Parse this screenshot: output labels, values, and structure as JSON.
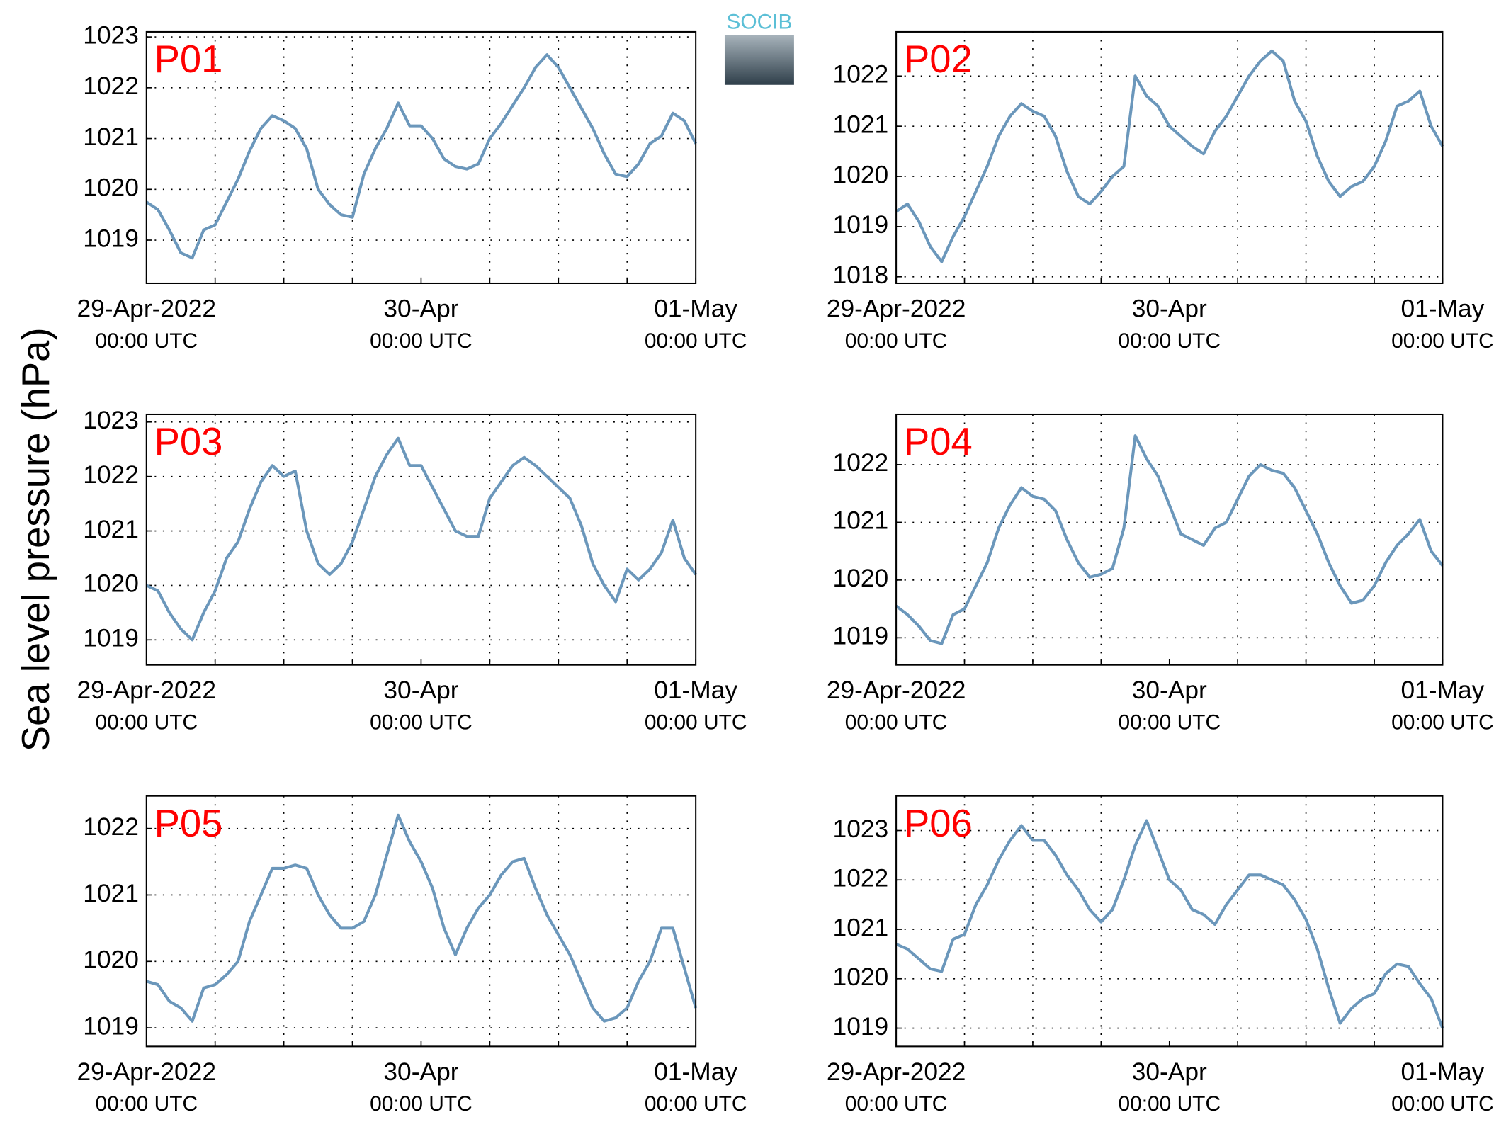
{
  "ylabel": "Sea level pressure (hPa)",
  "logo": "SOCIB",
  "chart_data": [
    {
      "type": "line",
      "title": "P01",
      "color": "#6b97bb",
      "grid": true,
      "x": [
        0,
        1,
        2,
        3,
        4,
        5,
        6,
        7,
        8,
        9,
        10,
        11,
        12,
        13,
        14,
        15,
        16,
        17,
        18,
        19,
        20,
        21,
        22,
        23,
        24,
        25,
        26,
        27,
        28,
        29,
        30,
        31,
        32,
        33,
        34,
        35,
        36,
        37,
        38,
        39,
        40,
        41,
        42,
        43,
        44,
        45,
        46,
        47,
        48
      ],
      "values": [
        1019.75,
        1019.6,
        1019.2,
        1018.75,
        1018.65,
        1019.2,
        1019.3,
        1019.75,
        1020.2,
        1020.75,
        1021.2,
        1021.45,
        1021.35,
        1021.2,
        1020.8,
        1020.0,
        1019.7,
        1019.5,
        1019.45,
        1020.3,
        1020.8,
        1021.2,
        1021.7,
        1021.25,
        1021.25,
        1021.0,
        1020.6,
        1020.45,
        1020.4,
        1020.5,
        1021.0,
        1021.3,
        1021.65,
        1022.0,
        1022.4,
        1022.65,
        1022.4,
        1022.0,
        1021.6,
        1021.2,
        1020.7,
        1020.3,
        1020.25,
        1020.5,
        1020.9,
        1021.05,
        1021.5,
        1021.35,
        1020.9
      ],
      "xlim": [
        0,
        48
      ],
      "xticks": [
        {
          "value": 0,
          "label": [
            "29-Apr-2022",
            "00:00 UTC"
          ]
        },
        {
          "value": 24,
          "label": [
            "30-Apr",
            "00:00 UTC"
          ]
        },
        {
          "value": 48,
          "label": [
            "01-May",
            "00:00 UTC"
          ]
        }
      ],
      "xminor_ticks": [
        6,
        12,
        18,
        30,
        36,
        42
      ],
      "ylim": [
        1018.15,
        1023.1
      ],
      "yticks": [
        1019,
        1020,
        1021,
        1022,
        1023
      ]
    },
    {
      "type": "line",
      "title": "P02",
      "color": "#6b97bb",
      "grid": true,
      "x": [
        0,
        1,
        2,
        3,
        4,
        5,
        6,
        7,
        8,
        9,
        10,
        11,
        12,
        13,
        14,
        15,
        16,
        17,
        18,
        19,
        20,
        21,
        22,
        23,
        24,
        25,
        26,
        27,
        28,
        29,
        30,
        31,
        32,
        33,
        34,
        35,
        36,
        37,
        38,
        39,
        40,
        41,
        42,
        43,
        44,
        45,
        46,
        47,
        48
      ],
      "values": [
        1019.3,
        1019.45,
        1019.1,
        1018.6,
        1018.3,
        1018.8,
        1019.2,
        1019.7,
        1020.2,
        1020.8,
        1021.2,
        1021.45,
        1021.3,
        1021.2,
        1020.8,
        1020.1,
        1019.6,
        1019.45,
        1019.7,
        1020.0,
        1020.2,
        1022.0,
        1021.6,
        1021.4,
        1021.0,
        1020.8,
        1020.6,
        1020.45,
        1020.9,
        1021.2,
        1021.6,
        1022.0,
        1022.3,
        1022.5,
        1022.3,
        1021.5,
        1021.1,
        1020.4,
        1019.9,
        1019.6,
        1019.8,
        1019.9,
        1020.2,
        1020.7,
        1021.4,
        1021.5,
        1021.7,
        1021.0,
        1020.6
      ],
      "xlim": [
        0,
        48
      ],
      "xticks": [
        {
          "value": 0,
          "label": [
            "29-Apr-2022",
            "00:00 UTC"
          ]
        },
        {
          "value": 24,
          "label": [
            "30-Apr",
            "00:00 UTC"
          ]
        },
        {
          "value": 48,
          "label": [
            "01-May",
            "00:00 UTC"
          ]
        }
      ],
      "xminor_ticks": [
        6,
        12,
        18,
        30,
        36,
        42
      ],
      "ylim": [
        1017.87,
        1022.88
      ],
      "yticks": [
        1018,
        1019,
        1020,
        1021,
        1022
      ]
    },
    {
      "type": "line",
      "title": "P03",
      "color": "#6b97bb",
      "grid": true,
      "x": [
        0,
        1,
        2,
        3,
        4,
        5,
        6,
        7,
        8,
        9,
        10,
        11,
        12,
        13,
        14,
        15,
        16,
        17,
        18,
        19,
        20,
        21,
        22,
        23,
        24,
        25,
        26,
        27,
        28,
        29,
        30,
        31,
        32,
        33,
        34,
        35,
        36,
        37,
        38,
        39,
        40,
        41,
        42,
        43,
        44,
        45,
        46,
        47,
        48
      ],
      "values": [
        1020.0,
        1019.9,
        1019.5,
        1019.2,
        1019.0,
        1019.5,
        1019.9,
        1020.5,
        1020.8,
        1021.4,
        1021.9,
        1022.2,
        1022.0,
        1022.1,
        1021.0,
        1020.4,
        1020.2,
        1020.4,
        1020.8,
        1021.4,
        1022.0,
        1022.4,
        1022.7,
        1022.2,
        1022.2,
        1021.8,
        1021.4,
        1021.0,
        1020.9,
        1020.9,
        1021.6,
        1021.9,
        1022.2,
        1022.35,
        1022.2,
        1022.0,
        1021.8,
        1021.6,
        1021.1,
        1020.4,
        1020.0,
        1019.7,
        1020.3,
        1020.1,
        1020.3,
        1020.6,
        1021.2,
        1020.5,
        1020.2
      ],
      "xlim": [
        0,
        48
      ],
      "xticks": [
        {
          "value": 0,
          "label": [
            "29-Apr-2022",
            "00:00 UTC"
          ]
        },
        {
          "value": 24,
          "label": [
            "30-Apr",
            "00:00 UTC"
          ]
        },
        {
          "value": 48,
          "label": [
            "01-May",
            "00:00 UTC"
          ]
        }
      ],
      "xminor_ticks": [
        6,
        12,
        18,
        30,
        36,
        42
      ],
      "ylim": [
        1018.54,
        1023.14
      ],
      "yticks": [
        1019,
        1020,
        1021,
        1022,
        1023
      ]
    },
    {
      "type": "line",
      "title": "P04",
      "color": "#6b97bb",
      "grid": true,
      "x": [
        0,
        1,
        2,
        3,
        4,
        5,
        6,
        7,
        8,
        9,
        10,
        11,
        12,
        13,
        14,
        15,
        16,
        17,
        18,
        19,
        20,
        21,
        22,
        23,
        24,
        25,
        26,
        27,
        28,
        29,
        30,
        31,
        32,
        33,
        34,
        35,
        36,
        37,
        38,
        39,
        40,
        41,
        42,
        43,
        44,
        45,
        46,
        47,
        48
      ],
      "values": [
        1019.55,
        1019.4,
        1019.2,
        1018.95,
        1018.9,
        1019.4,
        1019.5,
        1019.9,
        1020.3,
        1020.9,
        1021.3,
        1021.6,
        1021.45,
        1021.4,
        1021.2,
        1020.7,
        1020.3,
        1020.05,
        1020.1,
        1020.2,
        1020.9,
        1022.5,
        1022.1,
        1021.8,
        1021.3,
        1020.8,
        1020.7,
        1020.6,
        1020.9,
        1021.0,
        1021.4,
        1021.8,
        1022.0,
        1021.9,
        1021.85,
        1021.6,
        1021.2,
        1020.8,
        1020.3,
        1019.9,
        1019.6,
        1019.65,
        1019.9,
        1020.3,
        1020.6,
        1020.8,
        1021.05,
        1020.5,
        1020.25
      ],
      "xlim": [
        0,
        48
      ],
      "xticks": [
        {
          "value": 0,
          "label": [
            "29-Apr-2022",
            "00:00 UTC"
          ]
        },
        {
          "value": 24,
          "label": [
            "30-Apr",
            "00:00 UTC"
          ]
        },
        {
          "value": 48,
          "label": [
            "01-May",
            "00:00 UTC"
          ]
        }
      ],
      "xminor_ticks": [
        6,
        12,
        18,
        30,
        36,
        42
      ],
      "ylim": [
        1018.53,
        1022.87
      ],
      "yticks": [
        1019,
        1020,
        1021,
        1022
      ]
    },
    {
      "type": "line",
      "title": "P05",
      "color": "#6b97bb",
      "grid": true,
      "x": [
        0,
        1,
        2,
        3,
        4,
        5,
        6,
        7,
        8,
        9,
        10,
        11,
        12,
        13,
        14,
        15,
        16,
        17,
        18,
        19,
        20,
        21,
        22,
        23,
        24,
        25,
        26,
        27,
        28,
        29,
        30,
        31,
        32,
        33,
        34,
        35,
        36,
        37,
        38,
        39,
        40,
        41,
        42,
        43,
        44,
        45,
        46,
        47,
        48
      ],
      "values": [
        1019.7,
        1019.65,
        1019.4,
        1019.3,
        1019.1,
        1019.6,
        1019.65,
        1019.8,
        1020.0,
        1020.6,
        1021.0,
        1021.4,
        1021.4,
        1021.45,
        1021.4,
        1021.0,
        1020.7,
        1020.5,
        1020.5,
        1020.6,
        1021.0,
        1021.6,
        1022.2,
        1021.8,
        1021.5,
        1021.1,
        1020.5,
        1020.1,
        1020.5,
        1020.8,
        1021.0,
        1021.3,
        1021.5,
        1021.55,
        1021.1,
        1020.7,
        1020.4,
        1020.1,
        1019.7,
        1019.3,
        1019.1,
        1019.15,
        1019.3,
        1019.7,
        1020.0,
        1020.5,
        1020.5,
        1019.9,
        1019.3
      ],
      "xlim": [
        0,
        48
      ],
      "xticks": [
        {
          "value": 0,
          "label": [
            "29-Apr-2022",
            "00:00 UTC"
          ]
        },
        {
          "value": 24,
          "label": [
            "30-Apr",
            "00:00 UTC"
          ]
        },
        {
          "value": 48,
          "label": [
            "01-May",
            "00:00 UTC"
          ]
        }
      ],
      "xminor_ticks": [
        6,
        12,
        18,
        30,
        36,
        42
      ],
      "ylim": [
        1018.72,
        1022.49
      ],
      "yticks": [
        1019,
        1020,
        1021,
        1022
      ]
    },
    {
      "type": "line",
      "title": "P06",
      "color": "#6b97bb",
      "grid": true,
      "x": [
        0,
        1,
        2,
        3,
        4,
        5,
        6,
        7,
        8,
        9,
        10,
        11,
        12,
        13,
        14,
        15,
        16,
        17,
        18,
        19,
        20,
        21,
        22,
        23,
        24,
        25,
        26,
        27,
        28,
        29,
        30,
        31,
        32,
        33,
        34,
        35,
        36,
        37,
        38,
        39,
        40,
        41,
        42,
        43,
        44,
        45,
        46,
        47,
        48
      ],
      "values": [
        1020.7,
        1020.6,
        1020.4,
        1020.2,
        1020.15,
        1020.8,
        1020.9,
        1021.5,
        1021.9,
        1022.4,
        1022.8,
        1023.1,
        1022.8,
        1022.8,
        1022.5,
        1022.1,
        1021.8,
        1021.4,
        1021.15,
        1021.4,
        1022.0,
        1022.7,
        1023.2,
        1022.6,
        1022.0,
        1021.8,
        1021.4,
        1021.3,
        1021.1,
        1021.5,
        1021.8,
        1022.1,
        1022.1,
        1022.0,
        1021.9,
        1021.6,
        1021.2,
        1020.6,
        1019.8,
        1019.1,
        1019.4,
        1019.6,
        1019.7,
        1020.1,
        1020.3,
        1020.25,
        1019.9,
        1019.6,
        1019.0
      ],
      "xlim": [
        0,
        48
      ],
      "xticks": [
        {
          "value": 0,
          "label": [
            "29-Apr-2022",
            "00:00 UTC"
          ]
        },
        {
          "value": 24,
          "label": [
            "30-Apr",
            "00:00 UTC"
          ]
        },
        {
          "value": 48,
          "label": [
            "01-May",
            "00:00 UTC"
          ]
        }
      ],
      "xminor_ticks": [
        6,
        12,
        18,
        30,
        36,
        42
      ],
      "ylim": [
        1018.63,
        1023.7
      ],
      "yticks": [
        1019,
        1020,
        1021,
        1022,
        1023
      ]
    }
  ]
}
